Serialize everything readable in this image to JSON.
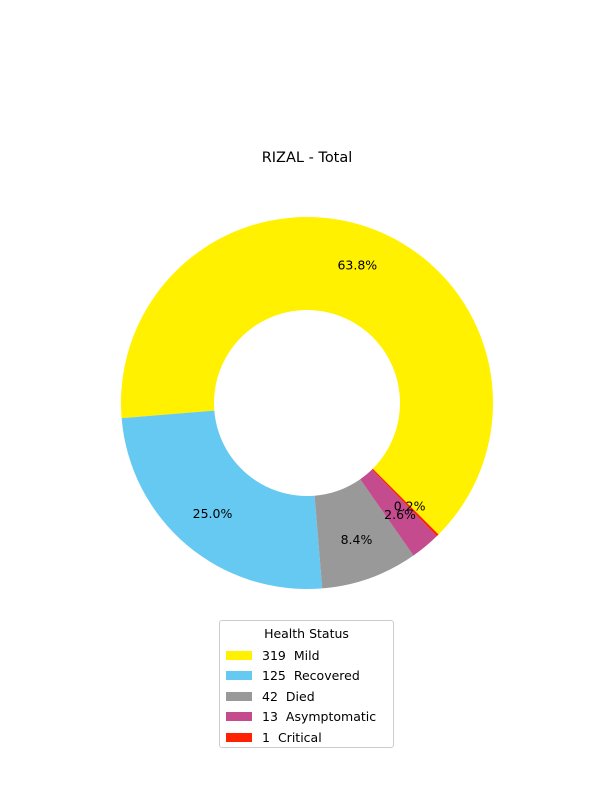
{
  "chart_data": {
    "type": "pie",
    "title": "RIZAL - Total",
    "donut": true,
    "slices": [
      {
        "label": "Mild",
        "count": "319",
        "value": 319,
        "pct_label": "63.8%",
        "color": "#fff100"
      },
      {
        "label": "Recovered",
        "count": "125",
        "value": 125,
        "pct_label": "25.0%",
        "color": "#66c9f2"
      },
      {
        "label": "Died",
        "count": "42",
        "value": 42,
        "pct_label": "8.4%",
        "color": "#999999"
      },
      {
        "label": "Asymptomatic",
        "count": "13",
        "value": 13,
        "pct_label": "2.6%",
        "color": "#c44b8e"
      },
      {
        "label": "Critical",
        "count": "1",
        "value": 1,
        "pct_label": "0.2%",
        "color": "#ff2200"
      }
    ],
    "start_angle_deg": -45,
    "direction": "counterclockwise",
    "legend": {
      "title": "Health Status",
      "placement": "bottom-center"
    }
  }
}
